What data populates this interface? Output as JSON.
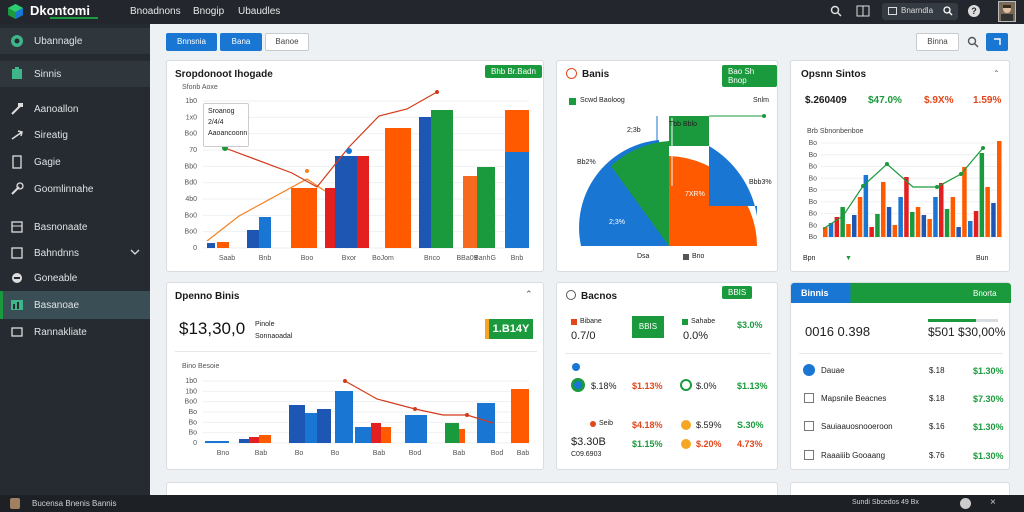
{
  "topbar": {
    "brand": "Dkontomi",
    "tabs": [
      "Bnoadnons",
      "Bnogip",
      "Ubaudles"
    ],
    "search_placeholder": "Bnarndla"
  },
  "sidebar": {
    "items": [
      {
        "label": "Ubannagle",
        "icon": "gauge-icon"
      },
      {
        "label": "Sinnis",
        "icon": "puzzle-icon"
      },
      {
        "label": "Aanoallon",
        "icon": "hammer-icon"
      },
      {
        "label": "Sireatig",
        "icon": "share-icon"
      },
      {
        "label": "Gagie",
        "icon": "document-icon"
      },
      {
        "label": "Goomlinnahe",
        "icon": "wrench-icon"
      },
      {
        "label": "Basnonaate",
        "icon": "grid-icon"
      },
      {
        "label": "Bahndnns",
        "icon": "list-icon"
      },
      {
        "label": "Goneable",
        "icon": "chat-icon"
      },
      {
        "label": "Basanoae",
        "icon": "chart-icon"
      },
      {
        "label": "Rannakliate",
        "icon": "folder-icon"
      }
    ]
  },
  "toolbar": {
    "buttons": [
      "Bnnsnia",
      "Bana",
      "Banoe"
    ],
    "right_button": "Binna"
  },
  "card1": {
    "title": "Sropdonoot Ihogade",
    "badge": "Bhb Br.Badn",
    "legend_title": "Sfonb Aoxe",
    "tooltip": [
      "Sroanog",
      "2/4/4",
      "Aaoancoonn"
    ],
    "x_labels": [
      "Saab",
      "Bnb",
      "Boo",
      "Bxor",
      "BoJom",
      "Bnco",
      "BBa09",
      "BanhG",
      "Bnb"
    ],
    "y_ticks": [
      "1b0",
      "1x0",
      "Bo0",
      "70",
      "Bb0",
      "Bd0",
      "4b0",
      "Bo0",
      "Bo0",
      "0"
    ]
  },
  "card2": {
    "title": "Banis",
    "badge": "Bao Sh Bnop",
    "legend": [
      "Scwd Baoloog",
      "Snlm"
    ],
    "slice_labels": [
      "Tbb Bblo",
      "2;3b",
      "Bb2%",
      "7XR%",
      "2;3%",
      "Bbb3%"
    ],
    "x_labels": [
      "Dsa",
      "Bno"
    ]
  },
  "card3": {
    "title": "Opsnn Sintos",
    "stats": [
      "$.260409",
      "$47.0%",
      "$.9X%",
      "1.59%"
    ],
    "legend_title": "Brb Sbnonbenboe",
    "x_labels": [
      "Bpn",
      "Bun"
    ],
    "y_ticks": [
      "Bo",
      "Bo",
      "Bo",
      "Bo",
      "Bo",
      "Bo",
      "Bo",
      "Bo",
      "Bo"
    ]
  },
  "card4": {
    "title": "Dpenno Binis",
    "big_value": "$13,30,0",
    "sub_label": "Pinole",
    "sub_label2": "Sonnaoadal",
    "stat_value": "1.B14Y",
    "legend_title": "Bino Besoie",
    "x_labels": [
      "Bno",
      "Bab",
      "Bo",
      "Bo",
      "Bab",
      "Bod",
      "Bab",
      "Bod",
      "Bab"
    ],
    "y_ticks": [
      "1b0",
      "1b0",
      "Bo0",
      "Bo",
      "Bo",
      "Bo",
      "0"
    ]
  },
  "card5": {
    "title": "Bacnos",
    "rows": [
      {
        "name": "Bibane",
        "value": "0.7/0",
        "badge": "BBIS",
        "label": "Sahabe",
        "pct": "$3.0%",
        "pct2": "0.0%"
      },
      {
        "name": "$.18%",
        "value": "$1.13%",
        "pct": "$.0%",
        "pct2": "$1.13%"
      },
      {
        "name": "Seib",
        "value": "$4.18%",
        "pct": "$.59%",
        "pct2": "S.30%"
      },
      {
        "name": "$3.30B",
        "value": "$1.15%",
        "pct": "$.20%",
        "pct2": "4.73%"
      }
    ],
    "footer": "C09.6903"
  },
  "card6": {
    "title": "Binnis",
    "badge": "Bnorta",
    "big_value": "0016 0.398",
    "big_value2": "$501 $30,00%",
    "rows": [
      {
        "label": "Dauae",
        "v1": "$.18",
        "v2": "$1.30%"
      },
      {
        "label": "Mapsnile Beacnes",
        "v1": "$.18",
        "v2": "$7.30%"
      },
      {
        "label": "Sauiaauosnooeroon",
        "v1": "$.16",
        "v2": "$1.30%"
      },
      {
        "label": "Raaaiiib Gooaang",
        "v1": "$.76",
        "v2": "$1.30%"
      }
    ]
  },
  "bottom": {
    "left_text": "Bucensa Bnenis Bannis",
    "right_text": "Sundi Sbcedos 49 Bx"
  },
  "chart_data": [
    {
      "type": "bar",
      "title": "Sropdonoot Ihogade",
      "categories": [
        "Saab",
        "Bnb",
        "Boo",
        "Bxor",
        "BoJom",
        "Bnco",
        "BBa09",
        "BanhG",
        "Bnb"
      ],
      "series": [
        {
          "values": [
            5,
            15,
            28,
            0,
            0,
            0,
            0,
            0,
            0
          ]
        },
        {
          "values": [
            0,
            0,
            50,
            0,
            0,
            0,
            0,
            0,
            0
          ]
        },
        {
          "values": [
            0,
            30,
            0,
            88,
            0,
            0,
            0,
            0,
            0
          ]
        },
        {
          "values": [
            0,
            0,
            0,
            90,
            93,
            0,
            111,
            0,
            0
          ]
        },
        {
          "values": [
            0,
            0,
            0,
            0,
            0,
            0,
            0,
            50,
            0
          ]
        },
        {
          "values": [
            0,
            0,
            0,
            0,
            0,
            0,
            0,
            0,
            74
          ]
        },
        {
          "values": [
            0,
            0,
            0,
            0,
            0,
            0,
            0,
            0,
            94
          ]
        }
      ]
    },
    {
      "type": "pie",
      "title": "Banis",
      "values": [
        45,
        20,
        35
      ]
    },
    {
      "type": "bar",
      "title": "Opsnn Sintos"
    },
    {
      "type": "bar",
      "title": "Dpenno Binis",
      "categories": [
        "Bno",
        "Bab",
        "Bo",
        "Bo",
        "Bab",
        "Bod",
        "Bab",
        "Bod",
        "Bab"
      ]
    }
  ]
}
